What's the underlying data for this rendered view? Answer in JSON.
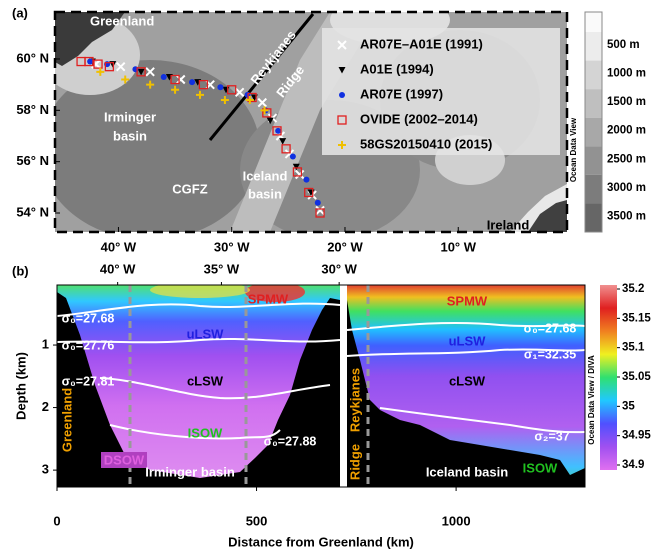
{
  "chart_data": [
    {
      "type": "scatter",
      "label": "(a)",
      "xlim": [
        -45.6,
        -0.4
      ],
      "ylim": [
        53.26,
        61.83
      ],
      "xticks": [
        {
          "value": -40,
          "label": "40° W"
        },
        {
          "value": -30,
          "label": "30° W"
        },
        {
          "value": -20,
          "label": "20° W"
        },
        {
          "value": -10,
          "label": "10° W"
        }
      ],
      "yticks": [
        {
          "value": 60,
          "label": "60° N"
        },
        {
          "value": 58,
          "label": "58° N"
        },
        {
          "value": 56,
          "label": "56° N"
        },
        {
          "value": 54,
          "label": "54° N"
        }
      ],
      "series": [
        {
          "name": "AR07E–A01E (1991)",
          "color": "#ffffff",
          "marker": "x",
          "x": [
            -42.0,
            -39.8,
            -37.2,
            -34.5,
            -31.9,
            -29.3,
            -27.3,
            -26.4,
            -25.7,
            -24.9,
            -24.0,
            -22.9,
            -22.2
          ],
          "y": [
            59.8,
            59.7,
            59.5,
            59.2,
            59.0,
            58.7,
            58.3,
            57.7,
            57.0,
            56.3,
            55.5,
            54.7,
            54.1
          ]
        },
        {
          "name": "A01E (1994)",
          "color": "#000000",
          "marker": "triangle",
          "x": [
            -42.3,
            -40.5,
            -38.0,
            -35.5,
            -33.0,
            -30.5,
            -28.0,
            -26.6,
            -25.5,
            -24.3,
            -23.0
          ],
          "y": [
            59.9,
            59.8,
            59.5,
            59.3,
            59.1,
            58.8,
            58.5,
            57.6,
            56.8,
            55.8,
            54.8
          ]
        },
        {
          "name": "AR07E (1997)",
          "color": "#1030e0",
          "marker": "circle",
          "x": [
            -42.5,
            -41.0,
            -38.5,
            -36.0,
            -33.5,
            -31.0,
            -28.6,
            -27.0,
            -25.9,
            -24.6,
            -23.4,
            -22.4
          ],
          "y": [
            59.9,
            59.8,
            59.6,
            59.3,
            59.1,
            58.9,
            58.6,
            58.0,
            57.2,
            56.2,
            55.3,
            54.4
          ]
        },
        {
          "name": "OVIDE (2002–2014)",
          "color": "#e02020",
          "marker": "square",
          "x": [
            -43.3,
            -42.6,
            -41.8,
            -40.8,
            -38.0,
            -35.0,
            -32.5,
            -30.0,
            -28.2,
            -26.9,
            -26.0,
            -25.2,
            -24.2,
            -23.2,
            -22.2
          ],
          "y": [
            59.9,
            59.9,
            59.8,
            59.7,
            59.5,
            59.2,
            59.0,
            58.8,
            58.5,
            57.9,
            57.2,
            56.5,
            55.6,
            54.8,
            54.0
          ]
        },
        {
          "name": "58GS20150410 (2015)",
          "color": "#f0c000",
          "marker": "plus",
          "x": [
            -41.6,
            -39.4,
            -37.2,
            -35.0,
            -32.8,
            -30.6,
            -28.4,
            -27.1
          ],
          "y": [
            59.5,
            59.2,
            59.0,
            58.8,
            58.6,
            58.4,
            58.4,
            58.0
          ]
        }
      ],
      "annotations": [
        "Greenland",
        "Reykjanes",
        "Ridge",
        "Irminger",
        "basin",
        "CGFZ",
        "Iceland",
        "basin",
        "Ireland"
      ],
      "colorbar": {
        "title": "Ocean Data View",
        "labels": [
          "500 m",
          "1000 m",
          "1500 m",
          "2000 m",
          "2500 m",
          "3000 m",
          "3500 m"
        ],
        "colors": [
          "#ececec",
          "#d4d4d4",
          "#bfbfbf",
          "#a8a8a8",
          "#929292",
          "#7c7c7c",
          "#666666"
        ]
      }
    },
    {
      "type": "section",
      "label": "(b)",
      "x_label": "Distance from Greenland (km)",
      "y_label": "Depth (km)",
      "xlim": [
        0,
        1323
      ],
      "ylim": [
        0.04,
        3.27
      ],
      "y_inverted": true,
      "xticks": [
        0,
        500,
        1000
      ],
      "yticks": [
        1,
        2,
        3
      ],
      "top_xticks": [
        {
          "value": 152,
          "label": "40° W"
        },
        {
          "value": 412,
          "label": "35° W"
        },
        {
          "value": 707,
          "label": "30° W"
        }
      ],
      "annotations": [
        "SPMW",
        "uLSW",
        "cLSW",
        "ISOW",
        "DSOW",
        "σ₀=27.68",
        "σ₀=27.76",
        "σ₀=27.81",
        "σ₀=27.88",
        "Greenland",
        "Irminger basin",
        "Reykjanes",
        "Ridge",
        "SPMW",
        "uLSW",
        "cLSW",
        "ISOW",
        "σ₀=27.68",
        "σ₁=32.35",
        "σ₂=37",
        "Iceland basin"
      ],
      "colorbar": {
        "title": "Ocean Data View / DIVA",
        "lim": [
          34.9,
          35.2
        ],
        "ticks": [
          34.9,
          34.95,
          35,
          35.05,
          35.1,
          35.15,
          35.2
        ],
        "colors": [
          "#e070f0",
          "#a050f0",
          "#5050ff",
          "#20c8ff",
          "#30e070",
          "#f0f020",
          "#f08020",
          "#e02020",
          "#f09090"
        ]
      }
    }
  ]
}
